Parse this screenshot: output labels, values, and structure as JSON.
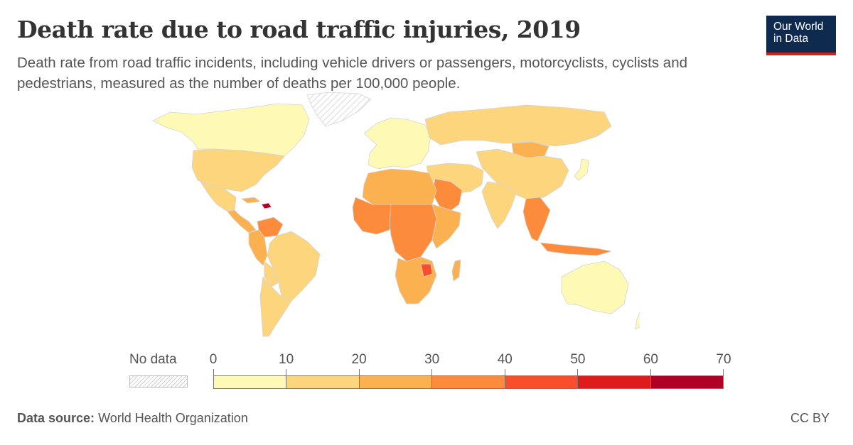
{
  "header": {
    "title": "Death rate due to road traffic injuries, 2019",
    "subtitle": "Death rate from road traffic incidents, including vehicle drivers or passengers, motorcyclists, cyclists and pedestrians, measured as the number of deaths per 100,000 people."
  },
  "logo": {
    "line1": "Our World",
    "line2": "in Data"
  },
  "legend": {
    "no_data_label": "No data",
    "ticks": [
      "0",
      "10",
      "20",
      "30",
      "40",
      "50",
      "60",
      "70"
    ],
    "bin_colors": [
      "#fefab5",
      "#fcd57d",
      "#fcb150",
      "#fc8c3c",
      "#f94e2c",
      "#e01b1c",
      "#b00026"
    ],
    "no_data_color": "#e8e8e8"
  },
  "footer": {
    "source_label": "Data source:",
    "source_value": "World Health Organization",
    "license": "CC BY"
  },
  "colors": {
    "ocean": "#ffffff",
    "border": "#d5d5d5"
  },
  "map_data": {
    "regions": [
      {
        "name": "Canada & Alaska",
        "bin": 0
      },
      {
        "name": "Greenland",
        "bin": null
      },
      {
        "name": "United States",
        "bin": 1
      },
      {
        "name": "Mexico",
        "bin": 1
      },
      {
        "name": "Central America",
        "bin": 2
      },
      {
        "name": "Dominican Republic",
        "bin": 6
      },
      {
        "name": "Venezuela",
        "bin": 3
      },
      {
        "name": "Brazil",
        "bin": 1
      },
      {
        "name": "Bolivia",
        "bin": 2
      },
      {
        "name": "Andes",
        "bin": 1
      },
      {
        "name": "Southern Cone",
        "bin": 1
      },
      {
        "name": "Europe",
        "bin": 0
      },
      {
        "name": "Russia",
        "bin": 1
      },
      {
        "name": "Mongolia",
        "bin": 2
      },
      {
        "name": "China",
        "bin": 1
      },
      {
        "name": "Middle East",
        "bin": 1
      },
      {
        "name": "Saudi Arabia",
        "bin": 3
      },
      {
        "name": "India",
        "bin": 1
      },
      {
        "name": "Southeast Asia",
        "bin": 3
      },
      {
        "name": "North Africa",
        "bin": 2
      },
      {
        "name": "West Africa",
        "bin": 3
      },
      {
        "name": "Central Africa",
        "bin": 3
      },
      {
        "name": "East Africa",
        "bin": 2
      },
      {
        "name": "Southern Africa",
        "bin": 2
      },
      {
        "name": "Zimbabwe",
        "bin": 4
      },
      {
        "name": "Madagascar",
        "bin": 2
      },
      {
        "name": "Australia",
        "bin": 0
      },
      {
        "name": "New Zealand",
        "bin": 0
      },
      {
        "name": "Japan",
        "bin": 0
      }
    ]
  }
}
